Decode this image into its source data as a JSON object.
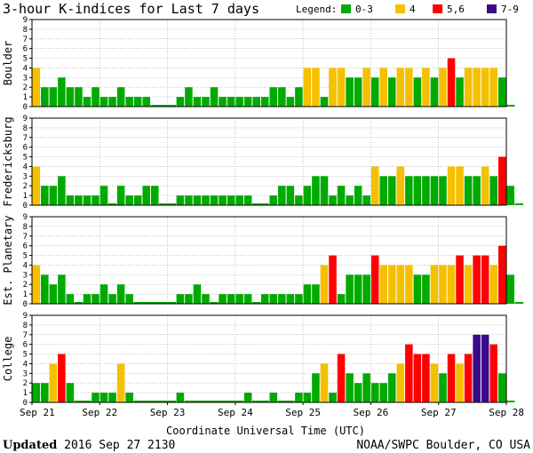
{
  "colors": {
    "low": "#00aa00",
    "mid": "#f5c000",
    "high": "#ff0000",
    "storm": "#3a0a8a"
  },
  "chart_data": {
    "type": "bar",
    "title": "3-hour K-indices for Last 7 days",
    "legend": {
      "label": "Legend:",
      "items": [
        {
          "label": "0-3",
          "color": "#00aa00"
        },
        {
          "label": "4",
          "color": "#f5c000"
        },
        {
          "label": "5,6",
          "color": "#ff0000"
        },
        {
          "label": "7-9",
          "color": "#3a0a8a"
        }
      ],
      "placement": "top-right"
    },
    "xlabel": "Coordinate Universal Time (UTC)",
    "x_ticks": [
      "Sep 21",
      "Sep 22",
      "Sep 23",
      "Sep 24",
      "Sep 25",
      "Sep 26",
      "Sep 27",
      "Sep 28"
    ],
    "ylim": [
      0,
      9
    ],
    "y_ticks": [
      "0",
      "1",
      "2",
      "3",
      "4",
      "5",
      "6",
      "7",
      "8",
      "9"
    ],
    "panels": [
      {
        "name": "Boulder",
        "values": [
          4,
          2,
          2,
          3,
          2,
          2,
          1,
          2,
          1,
          1,
          2,
          1,
          1,
          1,
          0,
          0,
          0,
          1,
          2,
          1,
          1,
          2,
          1,
          1,
          1,
          1,
          1,
          1,
          2,
          2,
          1,
          2,
          4,
          4,
          1,
          4,
          4,
          3,
          3,
          4,
          3,
          4,
          3,
          4,
          4,
          3,
          4,
          3,
          4,
          5,
          3,
          4,
          4,
          4,
          4,
          3,
          0
        ]
      },
      {
        "name": "Fredericksburg",
        "values": [
          4,
          2,
          2,
          3,
          1,
          1,
          1,
          1,
          2,
          0,
          2,
          1,
          1,
          2,
          2,
          0,
          0,
          1,
          1,
          1,
          1,
          1,
          1,
          1,
          1,
          1,
          0,
          0,
          1,
          2,
          2,
          1,
          2,
          3,
          3,
          1,
          2,
          1,
          2,
          1,
          4,
          3,
          3,
          4,
          3,
          3,
          3,
          3,
          3,
          4,
          4,
          3,
          3,
          4,
          3,
          5,
          2,
          0
        ]
      },
      {
        "name": "Est. Planetary",
        "values": [
          4,
          3,
          2,
          3,
          1,
          0,
          1,
          1,
          2,
          1,
          2,
          1,
          0,
          0,
          0,
          0,
          0,
          1,
          1,
          2,
          1,
          0,
          1,
          1,
          1,
          1,
          0,
          1,
          1,
          1,
          1,
          1,
          2,
          2,
          4,
          5,
          1,
          3,
          3,
          3,
          5,
          4,
          4,
          4,
          4,
          3,
          3,
          4,
          4,
          4,
          5,
          4,
          5,
          5,
          4,
          6,
          3,
          0
        ]
      },
      {
        "name": "College",
        "values": [
          2,
          2,
          4,
          5,
          2,
          0,
          0,
          1,
          1,
          1,
          4,
          1,
          0,
          0,
          0,
          0,
          0,
          1,
          0,
          0,
          0,
          0,
          0,
          0,
          0,
          1,
          0,
          0,
          1,
          0,
          0,
          1,
          1,
          3,
          4,
          1,
          5,
          3,
          2,
          3,
          2,
          2,
          3,
          4,
          6,
          5,
          5,
          4,
          3,
          5,
          4,
          5,
          7,
          7,
          6,
          3,
          0
        ]
      }
    ]
  },
  "footer": {
    "updated_label": "Updated",
    "updated_value": "2016 Sep 27 2130",
    "source": "NOAA/SWPC Boulder, CO USA"
  }
}
